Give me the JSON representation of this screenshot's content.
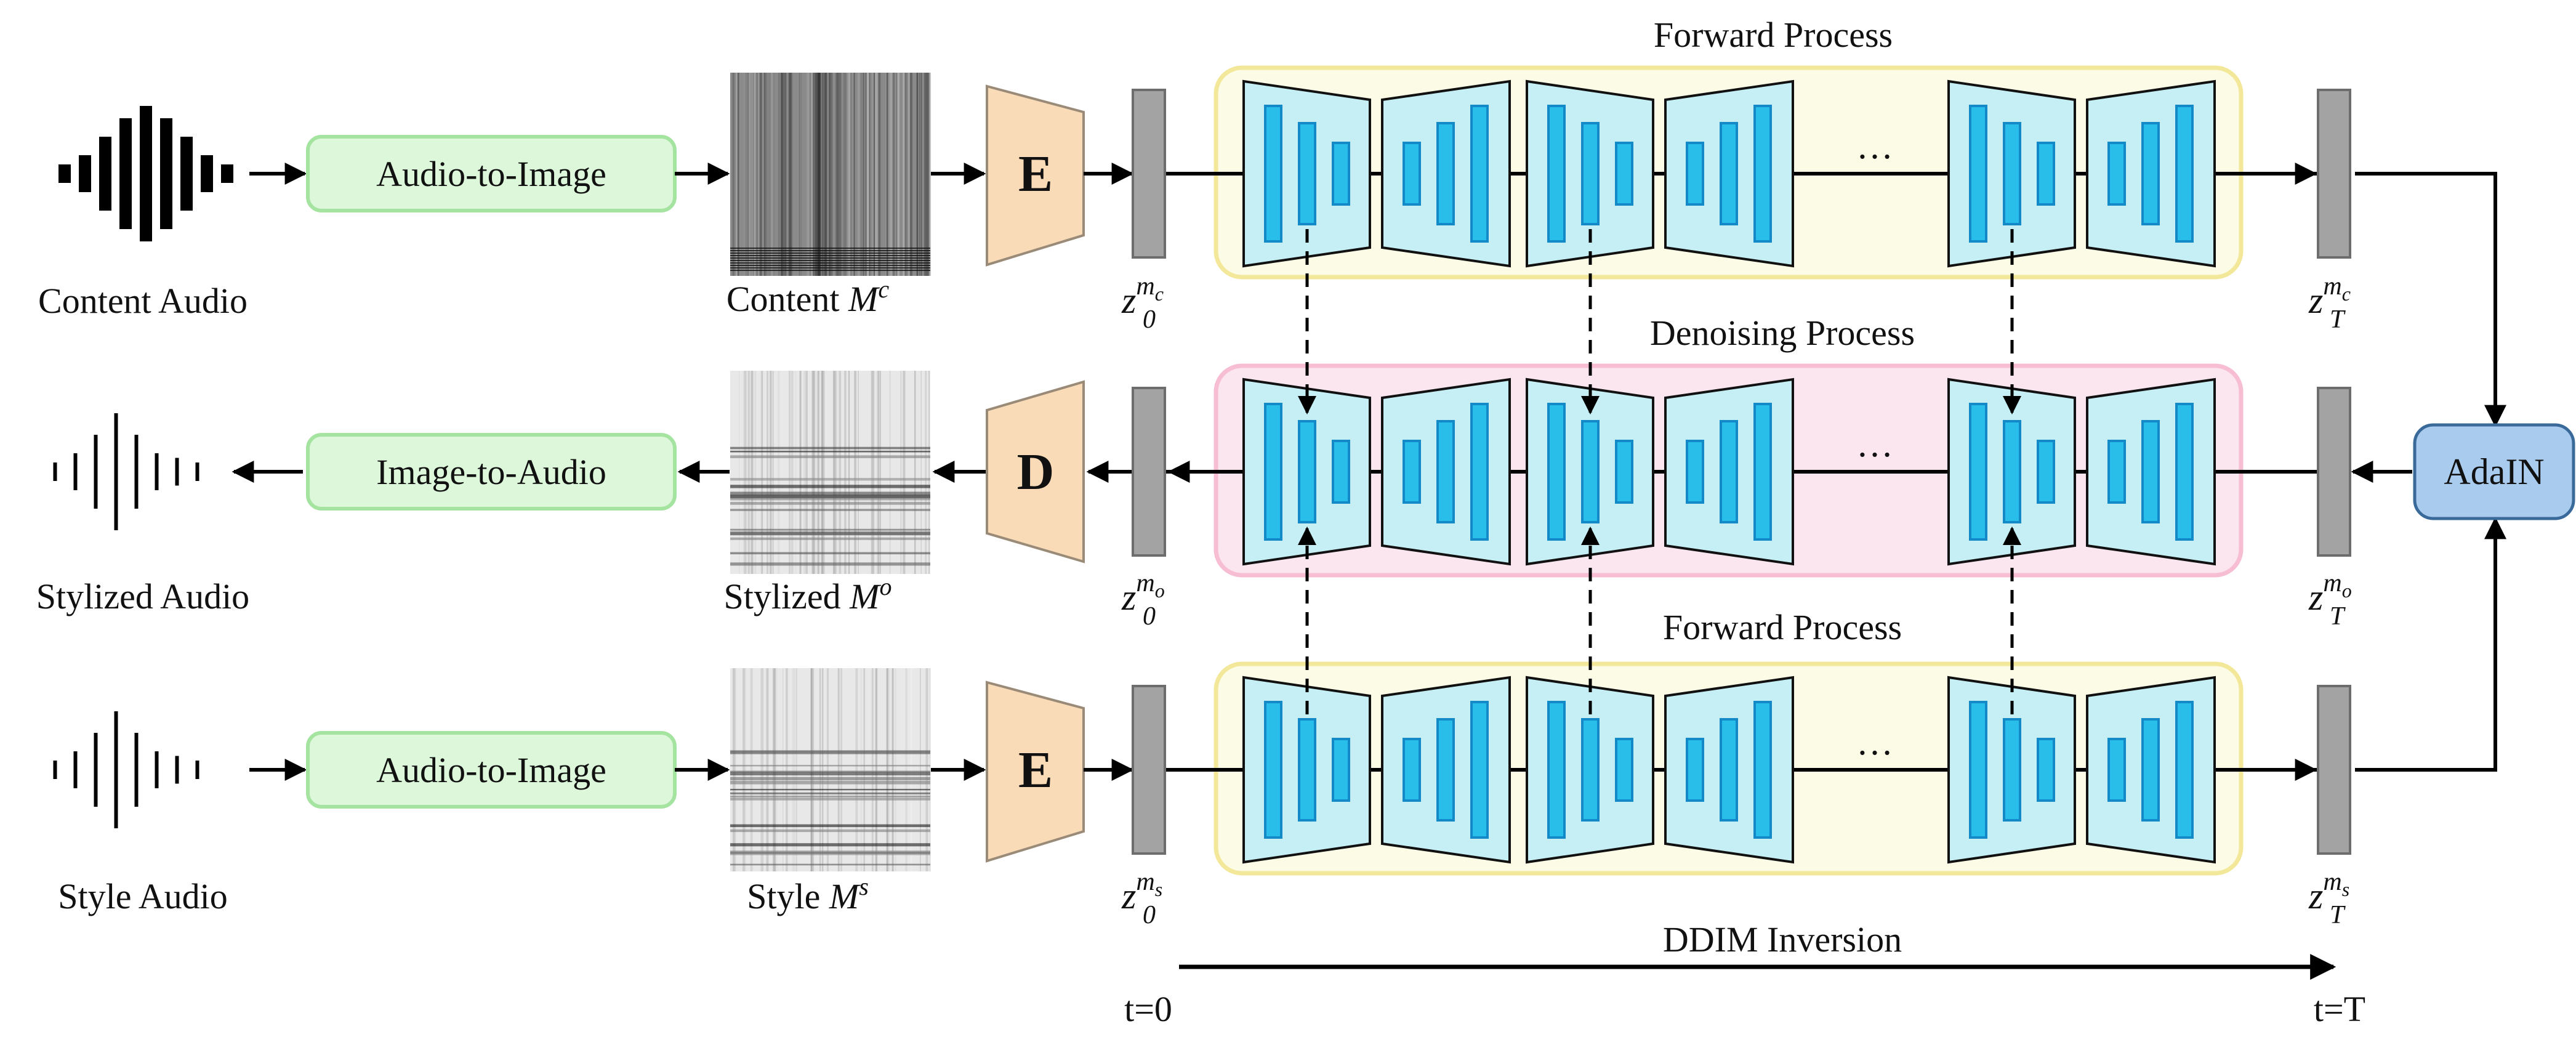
{
  "rows": {
    "content": {
      "audio_label": "Content Audio",
      "converter_label": "Audio-to-Image",
      "spec_label_text": "Content ",
      "spec_symbol": "M",
      "spec_sup": "c",
      "coder_label": "E",
      "latent_start": {
        "base": "z",
        "sub": "0",
        "sup": "m",
        "sup_sub": "c"
      },
      "latent_end": {
        "base": "z",
        "sub": "T",
        "sup": "m",
        "sup_sub": "c"
      },
      "process_label": "Forward Process"
    },
    "stylized": {
      "audio_label": "Stylized Audio",
      "converter_label": "Image-to-Audio",
      "spec_label_text": "Stylized ",
      "spec_symbol": "M",
      "spec_sup": "o",
      "coder_label": "D",
      "latent_start": {
        "base": "z",
        "sub": "0",
        "sup": "m",
        "sup_sub": "o"
      },
      "latent_end": {
        "base": "z",
        "sub": "T",
        "sup": "m",
        "sup_sub": "o"
      },
      "process_label": "Denoising Process"
    },
    "style": {
      "audio_label": "Style Audio",
      "converter_label": "Audio-to-Image",
      "spec_label_text": "Style ",
      "spec_symbol": "M",
      "spec_sup": "s",
      "coder_label": "E",
      "latent_start": {
        "base": "z",
        "sub": "0",
        "sup": "m",
        "sup_sub": "s"
      },
      "latent_end": {
        "base": "z",
        "sub": "T",
        "sup": "m",
        "sup_sub": "s"
      },
      "process_label": "Forward Process"
    }
  },
  "ellipsis": "…",
  "adain_label": "AdaIN",
  "inversion_label": "DDIM Inversion",
  "t_start": "t=0",
  "t_end": "t=T",
  "colors": {
    "converter_fill": "#dcf7d9",
    "converter_stroke": "#a5e3a0",
    "coder_fill": "#f9dbb8",
    "coder_stroke": "#9a8a78",
    "forward_fill": "#fbfbe6",
    "forward_stroke": "#f3e79a",
    "denoise_fill": "#fbe5ee",
    "denoise_stroke": "#f6bdd3",
    "unet_fill": "#c6eff5",
    "unet_bar": "#29bde9",
    "unet_bar_stroke": "#1489c7",
    "latent_fill": "#a3a3a3",
    "adain_fill": "#a9cbee",
    "adain_stroke": "#3a6a9a"
  }
}
